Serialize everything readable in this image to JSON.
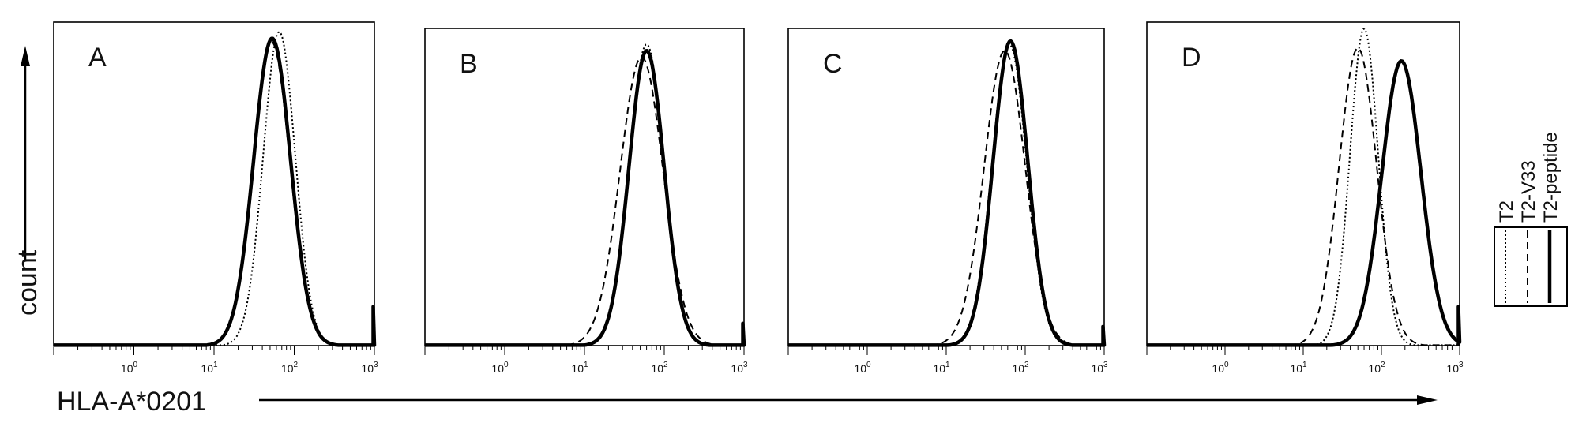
{
  "chart_data": {
    "type": "line",
    "x_scale": "log",
    "xlim": [
      0.1,
      1000
    ],
    "x_ticks": [
      "10^0",
      "10^1",
      "10^2",
      "10^3"
    ],
    "xlabel": "HLA-A*0201",
    "ylabel": "count",
    "legend": {
      "placement": "right",
      "entries": [
        {
          "name": "T2",
          "style": "dotted"
        },
        {
          "name": "T2-V33",
          "style": "dashed"
        },
        {
          "name": "T2-peptide",
          "style": "solid-thick"
        }
      ]
    },
    "panels": [
      {
        "label": "A",
        "series": [
          {
            "name": "T2",
            "style": "dotted",
            "center": 65,
            "sigma": 0.2,
            "peak": 0.97,
            "tail_at_end": 0.05
          },
          {
            "name": "T2-V33",
            "style": "dashed",
            "center": 52,
            "sigma": 0.23,
            "peak": 0.94,
            "tail_at_end": 0.06
          },
          {
            "name": "T2-peptide",
            "style": "solid-thick",
            "center": 53,
            "sigma": 0.23,
            "peak": 0.95,
            "tail_at_end": 0.12
          }
        ]
      },
      {
        "label": "B",
        "series": [
          {
            "name": "T2",
            "style": "dotted",
            "center": 60,
            "sigma": 0.22,
            "peak": 0.95,
            "tail_at_end": 0.04
          },
          {
            "name": "T2-V33",
            "style": "dashed",
            "center": 52,
            "sigma": 0.27,
            "peak": 0.91,
            "tail_at_end": 0.04
          },
          {
            "name": "T2-peptide",
            "style": "solid-thick",
            "center": 60,
            "sigma": 0.22,
            "peak": 0.93,
            "tail_at_end": 0.07
          }
        ]
      },
      {
        "label": "C",
        "series": [
          {
            "name": "T2",
            "style": "dotted",
            "center": 63,
            "sigma": 0.22,
            "peak": 0.95,
            "tail_at_end": 0.04
          },
          {
            "name": "T2-V33",
            "style": "dashed",
            "center": 55,
            "sigma": 0.26,
            "peak": 0.93,
            "tail_at_end": 0.04
          },
          {
            "name": "T2-peptide",
            "style": "solid-thick",
            "center": 65,
            "sigma": 0.22,
            "peak": 0.96,
            "tail_at_end": 0.06
          }
        ]
      },
      {
        "label": "D",
        "series": [
          {
            "name": "T2",
            "style": "dotted",
            "center": 60,
            "sigma": 0.18,
            "peak": 0.98,
            "tail_at_end": 0.03
          },
          {
            "name": "T2-V33",
            "style": "dashed",
            "center": 50,
            "sigma": 0.24,
            "peak": 0.92,
            "tail_at_end": 0.03
          },
          {
            "name": "T2-peptide",
            "style": "solid-thick",
            "center": 180,
            "sigma": 0.25,
            "peak": 0.88,
            "tail_at_end": 0.12
          }
        ]
      }
    ]
  }
}
